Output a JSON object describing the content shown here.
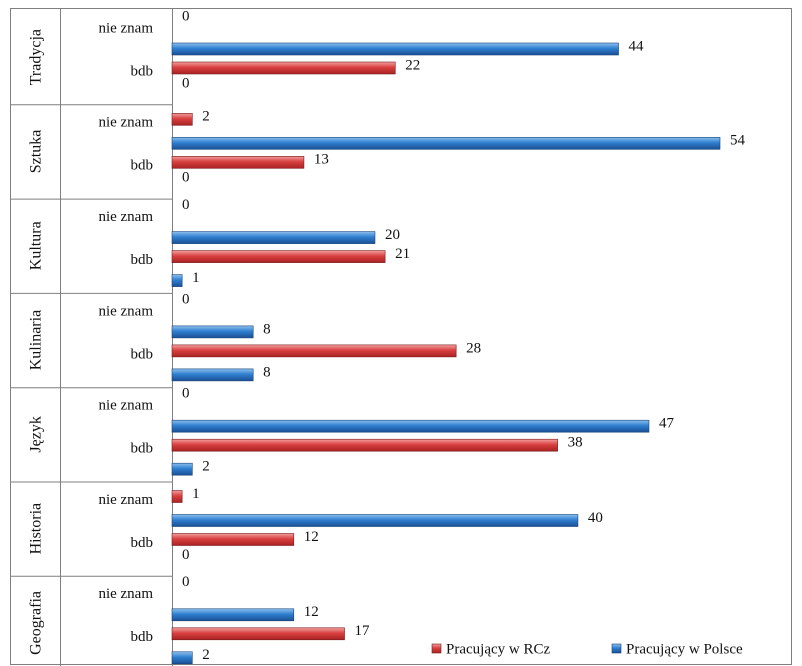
{
  "chart_data": {
    "type": "bar",
    "orientation": "horizontal",
    "groups": [
      {
        "name": "Tradycja",
        "rows": [
          {
            "label": "nie znam",
            "values": [
              0,
              44
            ]
          },
          {
            "label": "bdb",
            "values": [
              22,
              0
            ]
          }
        ]
      },
      {
        "name": "Sztuka",
        "rows": [
          {
            "label": "nie znam",
            "values": [
              2,
              54
            ]
          },
          {
            "label": "bdb",
            "values": [
              13,
              0
            ]
          }
        ]
      },
      {
        "name": "Kultura",
        "rows": [
          {
            "label": "nie znam",
            "values": [
              0,
              20
            ]
          },
          {
            "label": "bdb",
            "values": [
              21,
              1
            ]
          }
        ]
      },
      {
        "name": "Kulinaria",
        "rows": [
          {
            "label": "nie znam",
            "values": [
              0,
              8
            ]
          },
          {
            "label": "bdb",
            "values": [
              28,
              8
            ]
          }
        ]
      },
      {
        "name": "Język",
        "rows": [
          {
            "label": "nie znam",
            "values": [
              0,
              47
            ]
          },
          {
            "label": "bdb",
            "values": [
              38,
              2
            ]
          }
        ]
      },
      {
        "name": "Historia",
        "rows": [
          {
            "label": "nie znam",
            "values": [
              1,
              40
            ]
          },
          {
            "label": "bdb",
            "values": [
              12,
              0
            ]
          }
        ]
      },
      {
        "name": "Geografia",
        "rows": [
          {
            "label": "nie znam",
            "values": [
              0,
              12
            ]
          },
          {
            "label": "bdb",
            "values": [
              17,
              2
            ]
          }
        ]
      }
    ],
    "series": [
      {
        "name": "Pracujący w RCz",
        "color": "#d73838"
      },
      {
        "name": "Pracujący w Polsce",
        "color": "#2f75c6"
      }
    ],
    "xlim": [
      0,
      54
    ],
    "grid": false,
    "legend_position": "bottom-right"
  }
}
